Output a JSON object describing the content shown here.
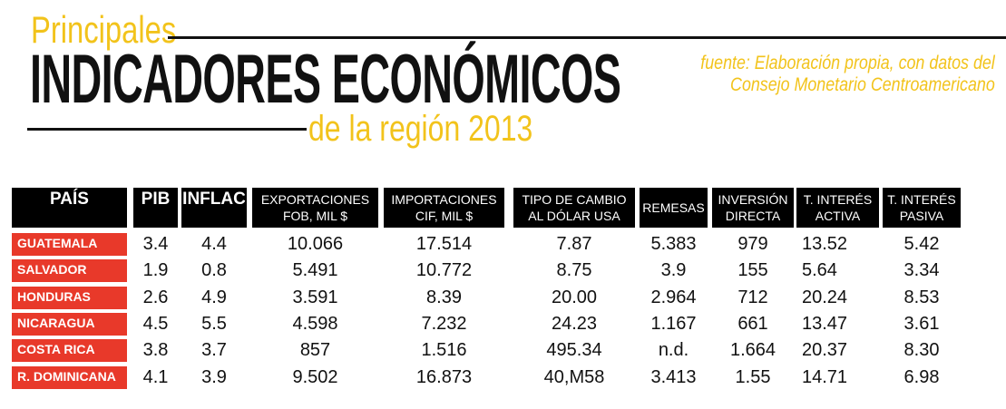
{
  "header": {
    "subtitle_top": "Principales",
    "title": "INDICADORES ECONÓMICOS",
    "subtitle_bottom": "de la región 2013",
    "source_line1": "fuente: Elaboración propia, con datos del",
    "source_line2": "Consejo Monetario Centroamericano"
  },
  "colors": {
    "accent_yellow": "#f2c31b",
    "country_red": "#e8392a",
    "header_black": "#000000"
  },
  "table": {
    "columns": [
      "PAÍS",
      "PIB",
      "INFLAC",
      "EXPORTACIONES\nFOB, MIL $",
      "IMPORTACIONES\nCIF, MIL $",
      "TIPO DE CAMBIO\nAL DÓLAR USA",
      "REMESAS",
      "INVERSIÓN\nDIRECTA",
      "T. INTERÉS\nACTIVA",
      "T. INTERÉS\nPASIVA"
    ],
    "rows": [
      [
        "GUATEMALA",
        "3.4",
        "4.4",
        "10.066",
        "17.514",
        "7.87",
        "5.383",
        "979",
        "13.52",
        "5.42"
      ],
      [
        "SALVADOR",
        "1.9",
        "0.8",
        "5.491",
        "10.772",
        "8.75",
        "3.9",
        "155",
        "5.64",
        "3.34"
      ],
      [
        "HONDURAS",
        "2.6",
        "4.9",
        "3.591",
        "8.39",
        "20.00",
        "2.964",
        "712",
        "20.24",
        "8.53"
      ],
      [
        "NICARAGUA",
        "4.5",
        "5.5",
        "4.598",
        "7.232",
        "24.23",
        "1.167",
        "661",
        "13.47",
        "3.61"
      ],
      [
        "COSTA RICA",
        "3.8",
        "3.7",
        "857",
        "1.516",
        "495.34",
        "n.d.",
        "1.664",
        "20.37",
        "8.30"
      ],
      [
        "R. DOMINICANA",
        "4.1",
        "3.9",
        "9.502",
        "16.873",
        "40,M58",
        "3.413",
        "1.55",
        "14.71",
        "6.98"
      ]
    ]
  }
}
